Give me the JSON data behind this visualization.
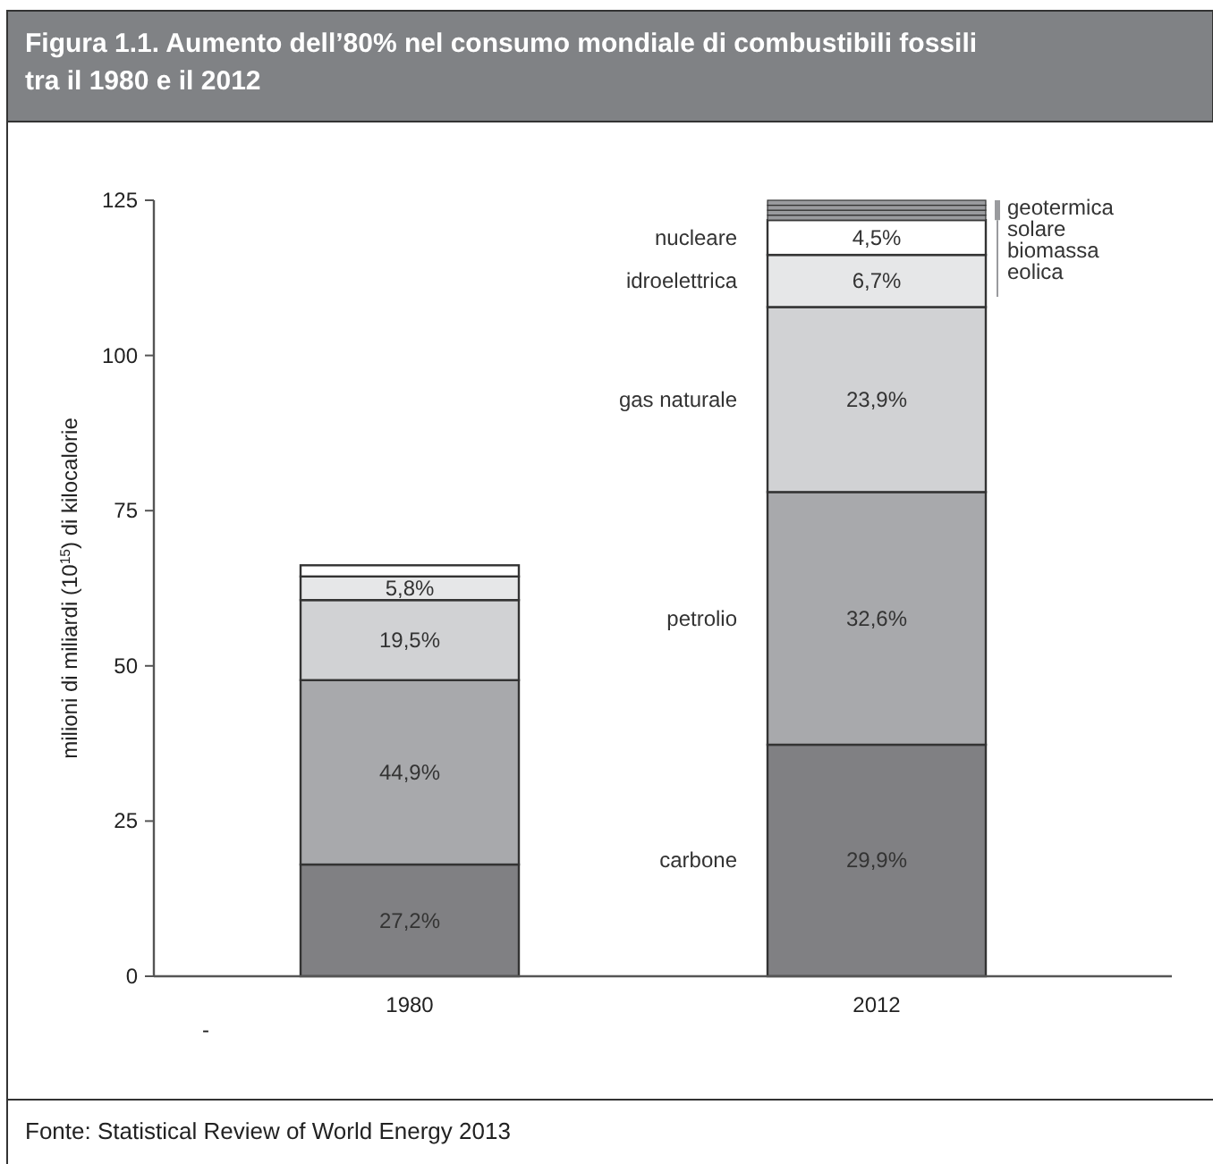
{
  "chart_data": {
    "type": "bar",
    "stacked": true,
    "title": "Figura 1.1. Aumento dell’80% nel consumo mondiale di combustibili fossili tra il 1980 e il 2012",
    "ylabel": "milioni di miliardi (10$^{15}$) di kilocalorie",
    "categories": [
      "1980",
      "2012"
    ],
    "ylim": [
      0,
      125
    ],
    "yticks": [
      0,
      25,
      50,
      75,
      100,
      125
    ],
    "grid": false,
    "series": [
      {
        "name": "carbone",
        "color": "#808083",
        "values": [
          18.0,
          37.3
        ]
      },
      {
        "name": "petrolio",
        "color": "#a8a9ac",
        "values": [
          29.7,
          40.7
        ]
      },
      {
        "name": "gas naturale",
        "color": "#d1d2d4",
        "values": [
          12.9,
          29.8
        ]
      },
      {
        "name": "idroelettrica",
        "color": "#e6e7e8",
        "values": [
          3.8,
          8.4
        ]
      },
      {
        "name": "nucleare",
        "color": "#ffffff",
        "values": [
          1.8,
          5.6
        ]
      },
      {
        "name": "eolica",
        "color": "#9a9b9e",
        "values": [
          null,
          0.8
        ]
      },
      {
        "name": "biomassa",
        "color": "#9a9b9e",
        "values": [
          null,
          0.8
        ]
      },
      {
        "name": "solare",
        "color": "#9a9b9e",
        "values": [
          null,
          0.8
        ]
      },
      {
        "name": "geotermica",
        "color": "#9a9b9e",
        "values": [
          null,
          0.8
        ]
      }
    ],
    "annotations": [
      "-",
      "Fonte: Statistical Review of World Energy 2013",
      "27,2%",
      "44,9%",
      "19,5%",
      "5,8%",
      "29,9%",
      "32,6%",
      "23,9%",
      "6,7%",
      "4,5%"
    ]
  }
}
